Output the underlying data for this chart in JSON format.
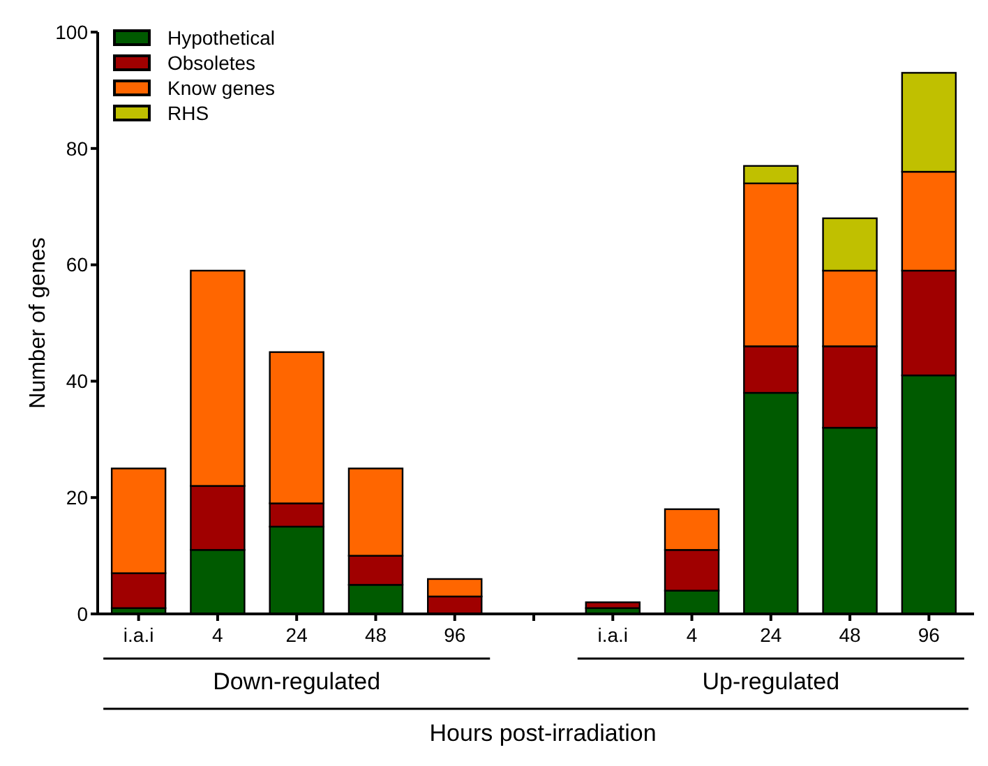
{
  "chart_data": {
    "type": "bar",
    "stacked": true,
    "xlabel": "Hours post-irradiation",
    "ylabel": "Number of genes",
    "categories": [
      "i.a.i",
      "4",
      "24",
      "48",
      "96",
      null,
      "i.a.i",
      "4",
      "24",
      "48",
      "96"
    ],
    "series": [
      {
        "name": "Hypothetical",
        "color": "#005a00",
        "values": [
          1,
          11,
          15,
          5,
          0,
          null,
          1,
          4,
          38,
          32,
          41
        ]
      },
      {
        "name": "Obsoletes",
        "color": "#a00000",
        "values": [
          6,
          11,
          4,
          5,
          3,
          null,
          1,
          7,
          8,
          14,
          18
        ]
      },
      {
        "name": "Know genes",
        "color": "#ff6600",
        "values": [
          18,
          37,
          26,
          15,
          3,
          null,
          0,
          7,
          28,
          13,
          17
        ]
      },
      {
        "name": "RHS",
        "color": "#c0c000",
        "values": [
          0,
          0,
          0,
          0,
          0,
          null,
          0,
          0,
          3,
          9,
          17
        ]
      }
    ],
    "ylim": [
      0,
      100
    ],
    "yticks": [
      0,
      20,
      40,
      60,
      80,
      100
    ],
    "legend": "top left",
    "annotations": [
      "Down-regulated",
      "Up-regulated"
    ]
  }
}
